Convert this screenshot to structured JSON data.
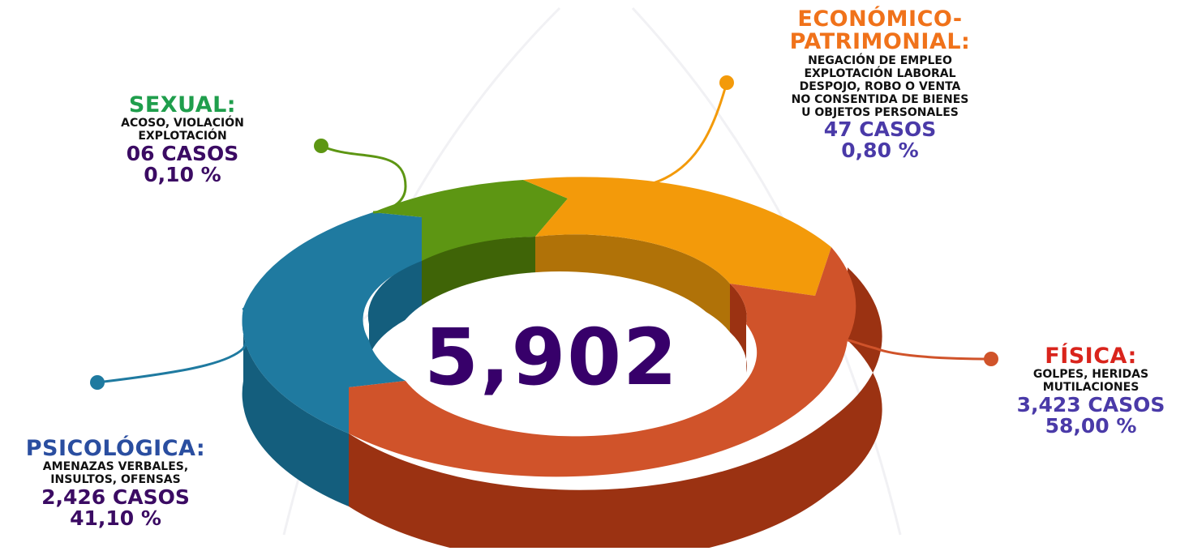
{
  "colors": {
    "fisica": "#d0532a",
    "fisica_side": "#9b3212",
    "psicologica": "#1f7aa0",
    "psicologica_side": "#145e7d",
    "sexual": "#5d9613",
    "sexual_side": "#3f6407",
    "economico": "#f39a0a",
    "economico_side": "#b07208",
    "label_fisica": "#d9241c",
    "label_psicologica": "#2a4ea0",
    "label_sexual": "#1f9e4c",
    "label_economico": "#f0721a",
    "label_dark": "#3b0b63",
    "label_blue": "#4a3aa8",
    "total": "#37006a"
  },
  "center_total": "5,902",
  "chart_data": {
    "type": "pie",
    "title": "",
    "total": 5902,
    "slices": [
      {
        "category": "FÍSICA:",
        "description": [
          "GOLPES, HERIDAS",
          "MUTILACIONES"
        ],
        "cases": 3423,
        "cases_label": "3,423 CASOS",
        "percent": 58.0,
        "percent_label": "58,00 %"
      },
      {
        "category": "PSICOLÓGICA:",
        "description": [
          "AMENAZAS VERBALES,",
          "INSULTOS, OFENSAS"
        ],
        "cases": 2426,
        "cases_label": "2,426 CASOS",
        "percent": 41.1,
        "percent_label": "41,10 %"
      },
      {
        "category": "SEXUAL:",
        "description": [
          "ACOSO, VIOLACIÓN",
          "EXPLOTACIÓN"
        ],
        "cases": 6,
        "cases_label": "06 CASOS",
        "percent": 0.1,
        "percent_label": "0,10 %"
      },
      {
        "category": [
          "ECONÓMICO-",
          "PATRIMONIAL:"
        ],
        "description": [
          "NEGACIÓN DE EMPLEO",
          "EXPLOTACIÓN LABORAL",
          "DESPOJO, ROBO O VENTA",
          "NO CONSENTIDA DE BIENES",
          "U OBJETOS PERSONALES"
        ],
        "cases": 47,
        "cases_label": "47 CASOS",
        "percent": 0.8,
        "percent_label": "0,80 %"
      }
    ]
  }
}
